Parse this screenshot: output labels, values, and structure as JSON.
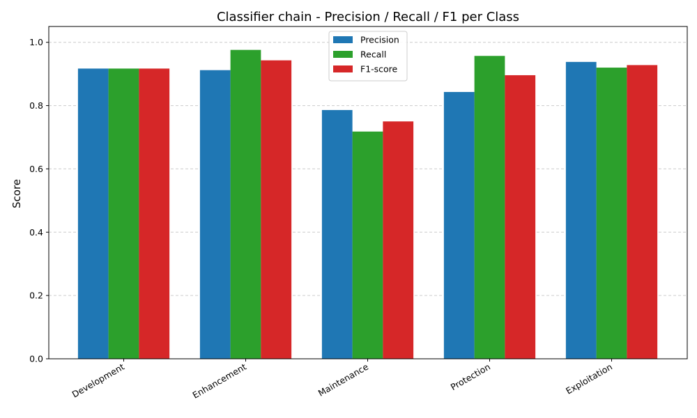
{
  "chart_data": {
    "type": "bar",
    "title": "Classifier chain - Precision / Recall / F1 per Class",
    "xlabel": "",
    "ylabel": "Score",
    "categories": [
      "Development",
      "Enhancement",
      "Maintenance",
      "Protection",
      "Exploitation"
    ],
    "series": [
      {
        "name": "Precision",
        "color": "#1f77b4",
        "values": [
          0.917,
          0.912,
          0.786,
          0.843,
          0.938
        ]
      },
      {
        "name": "Recall",
        "color": "#2ca02c",
        "values": [
          0.917,
          0.976,
          0.718,
          0.957,
          0.92
        ]
      },
      {
        "name": "F1-score",
        "color": "#d62728",
        "values": [
          0.917,
          0.943,
          0.75,
          0.896,
          0.928
        ]
      }
    ],
    "ylim": [
      0,
      1.05
    ],
    "yticks": [
      "0.0",
      "0.2",
      "0.4",
      "0.6",
      "0.8",
      "1.0"
    ],
    "grid": true,
    "legend_position": "top-center"
  }
}
